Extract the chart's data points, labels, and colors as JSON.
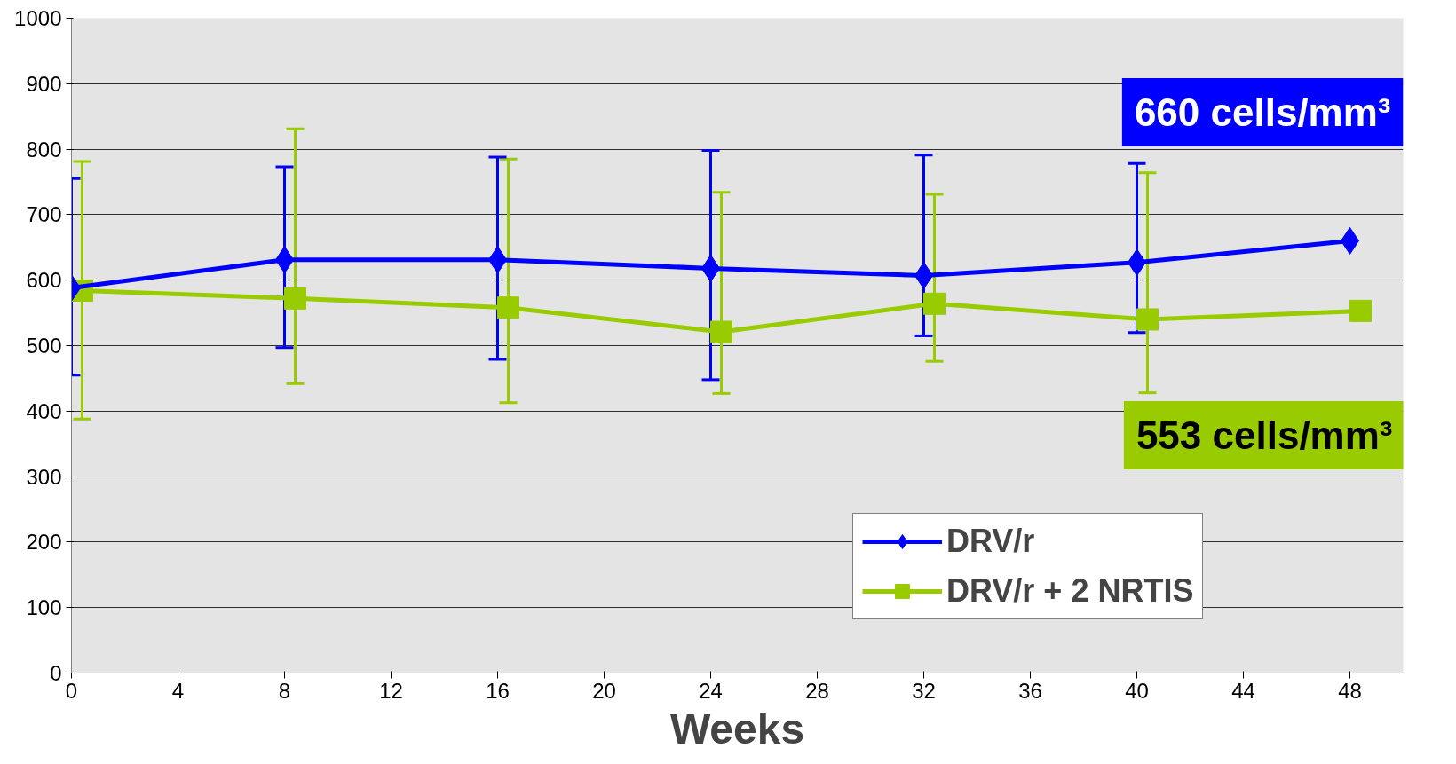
{
  "chart_data": {
    "type": "line",
    "xlabel": "Weeks",
    "xlim": [
      0,
      50
    ],
    "xticks": [
      0,
      4,
      8,
      12,
      16,
      20,
      24,
      28,
      32,
      36,
      40,
      44,
      48
    ],
    "ylim": [
      0,
      1000
    ],
    "yticks": [
      0,
      100,
      200,
      300,
      400,
      500,
      600,
      700,
      800,
      900,
      1000
    ],
    "grid": "y",
    "legend": "bottom right",
    "series": [
      {
        "name": "DRV/r",
        "color": "#0000ff",
        "marker": "diamond",
        "x": [
          0,
          8,
          16,
          24,
          32,
          40,
          48
        ],
        "values": [
          588,
          631,
          631,
          618,
          607,
          627,
          660
        ],
        "errors": [
          [
            455,
            755
          ],
          [
            497,
            773
          ],
          [
            479,
            788
          ],
          [
            448,
            798
          ],
          [
            515,
            791
          ],
          [
            520,
            778
          ],
          null
        ]
      },
      {
        "name": "DRV/r + 2 NRTIS",
        "color": "#99cc00",
        "marker": "square",
        "x": [
          0.4,
          8.4,
          16.4,
          24.4,
          32.4,
          40.4,
          48.4
        ],
        "values": [
          584,
          572,
          558,
          521,
          564,
          540,
          553
        ],
        "errors": [
          [
            388,
            781
          ],
          [
            442,
            831
          ],
          [
            413,
            785
          ],
          [
            427,
            734
          ],
          [
            476,
            731
          ],
          [
            428,
            764
          ],
          null
        ]
      }
    ],
    "annotations": [
      {
        "text": "660 cells/mm³",
        "x": 48,
        "y": 660
      },
      {
        "text": "553 cells/mm³",
        "x": 48.4,
        "y": 553
      }
    ]
  }
}
